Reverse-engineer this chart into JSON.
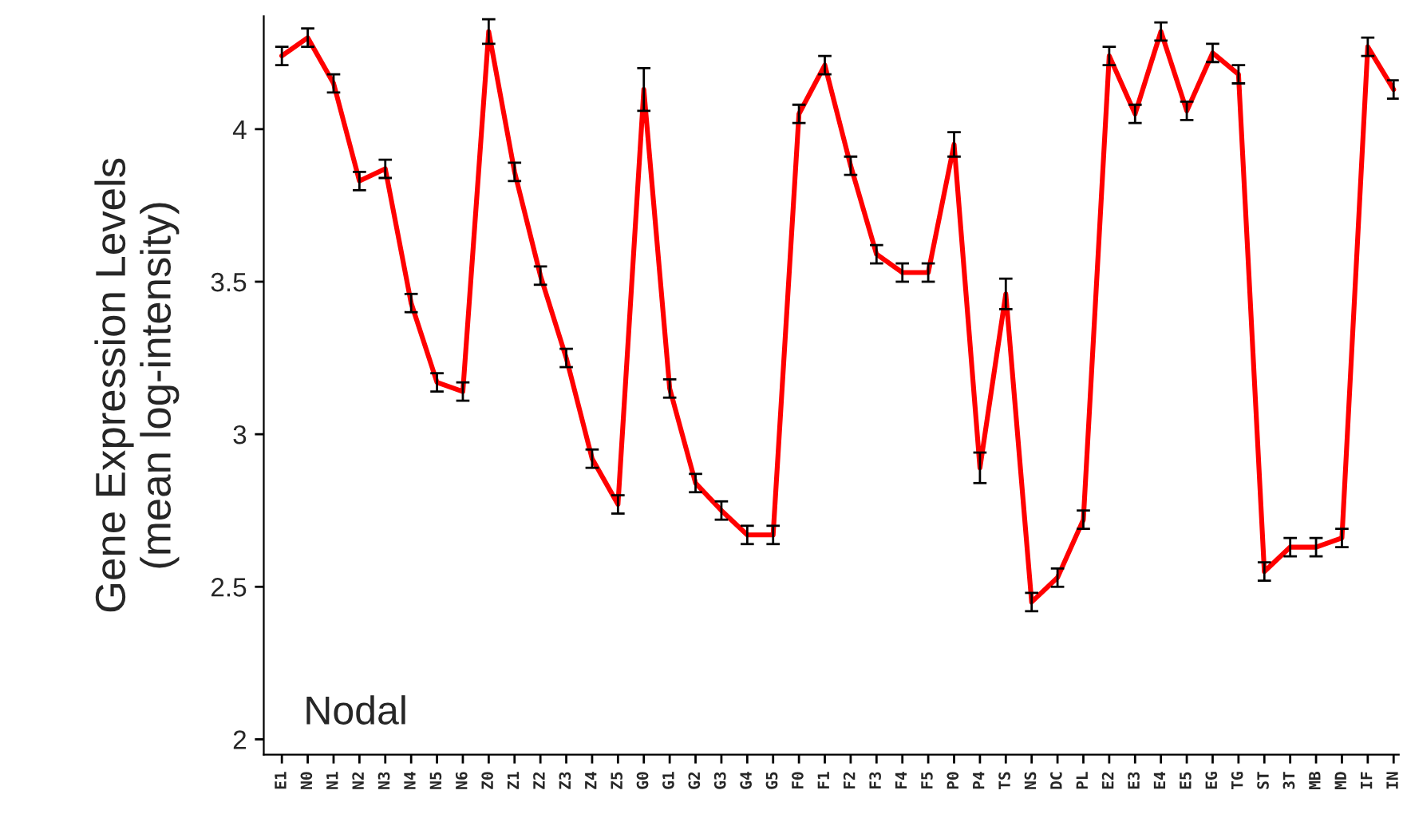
{
  "chart_data": {
    "type": "line",
    "ylabel": "Gene Expression Levels\n(mean log-intensity)",
    "annotations": [
      "Nodal"
    ],
    "categories": [
      "E1",
      "N0",
      "N1",
      "N2",
      "N3",
      "N4",
      "N5",
      "N6",
      "Z0",
      "Z1",
      "Z2",
      "Z3",
      "Z4",
      "Z5",
      "G0",
      "G1",
      "G2",
      "G3",
      "G4",
      "G5",
      "F0",
      "F1",
      "F2",
      "F3",
      "F4",
      "F5",
      "P0",
      "P4",
      "TS",
      "NS",
      "DC",
      "PL",
      "E2",
      "E3",
      "E4",
      "E5",
      "EG",
      "TG",
      "ST",
      "3T",
      "MB",
      "MD",
      "IF",
      "IN"
    ],
    "series": [
      {
        "color": "#ff0000",
        "values": [
          4.24,
          4.3,
          4.15,
          3.83,
          3.87,
          3.43,
          3.17,
          3.14,
          4.32,
          3.86,
          3.52,
          3.25,
          2.92,
          2.77,
          4.13,
          3.15,
          2.84,
          2.75,
          2.67,
          2.67,
          4.05,
          4.21,
          3.88,
          3.59,
          3.53,
          3.53,
          3.95,
          2.89,
          3.46,
          2.45,
          2.53,
          2.72,
          4.24,
          4.05,
          4.32,
          4.06,
          4.25,
          4.18,
          2.55,
          2.63,
          2.63,
          2.66,
          4.27,
          4.13
        ],
        "errors": [
          0.03,
          0.03,
          0.03,
          0.03,
          0.03,
          0.03,
          0.03,
          0.03,
          0.04,
          0.03,
          0.03,
          0.03,
          0.03,
          0.03,
          0.07,
          0.03,
          0.03,
          0.03,
          0.03,
          0.03,
          0.03,
          0.03,
          0.03,
          0.03,
          0.03,
          0.03,
          0.04,
          0.05,
          0.05,
          0.03,
          0.03,
          0.03,
          0.03,
          0.03,
          0.03,
          0.03,
          0.03,
          0.03,
          0.03,
          0.03,
          0.03,
          0.03,
          0.03,
          0.03
        ]
      }
    ],
    "ylim": [
      1.95,
      4.37
    ],
    "yticks": [
      2,
      2.5,
      3,
      3.5,
      4
    ],
    "grid": false,
    "legend": false,
    "marker": "none",
    "line_style": "solid"
  }
}
